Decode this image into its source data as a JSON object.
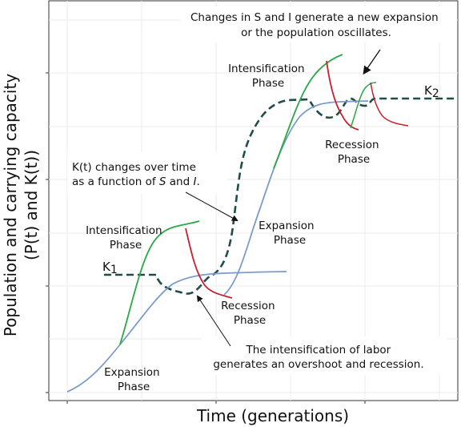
{
  "axes": {
    "xlabel": "Time (generations)",
    "ylabel_line1": "Population and carrying capacity",
    "ylabel_line2": "(P(t) and K(t))"
  },
  "labels": {
    "k1": "K",
    "k1_sub": "1",
    "k2": "K",
    "k2_sub": "2",
    "expansion_1": [
      "Expansion",
      "Phase"
    ],
    "intensification_1": [
      "Intensification",
      "Phase"
    ],
    "recession_1": [
      "Recession",
      "Phase"
    ],
    "expansion_2": [
      "Expansion",
      "Phase"
    ],
    "intensification_2": [
      "Intensification",
      "Phase"
    ],
    "recession_2": [
      "Recession",
      "Phase"
    ]
  },
  "notes": {
    "kt_change_line1": "K(t) changes over time",
    "kt_change_line2_pre": "as a function of ",
    "kt_change_s": "S",
    "kt_change_mid": " and ",
    "kt_change_i": "I",
    "kt_change_end": ".",
    "top_line1": "Changes in S and I generate a new expansion",
    "top_line2": "or the population oscillates.",
    "bottom_line1": "The intensification of labor",
    "bottom_line2": "generates an overshoot and recession."
  },
  "colors": {
    "population": "#7b9cc9",
    "carrying_capacity": "#1f4e4a",
    "intensification": "#2aa84a",
    "recession": "#c8202e",
    "grid": "#ebebeb",
    "arrow": "#111111"
  }
}
